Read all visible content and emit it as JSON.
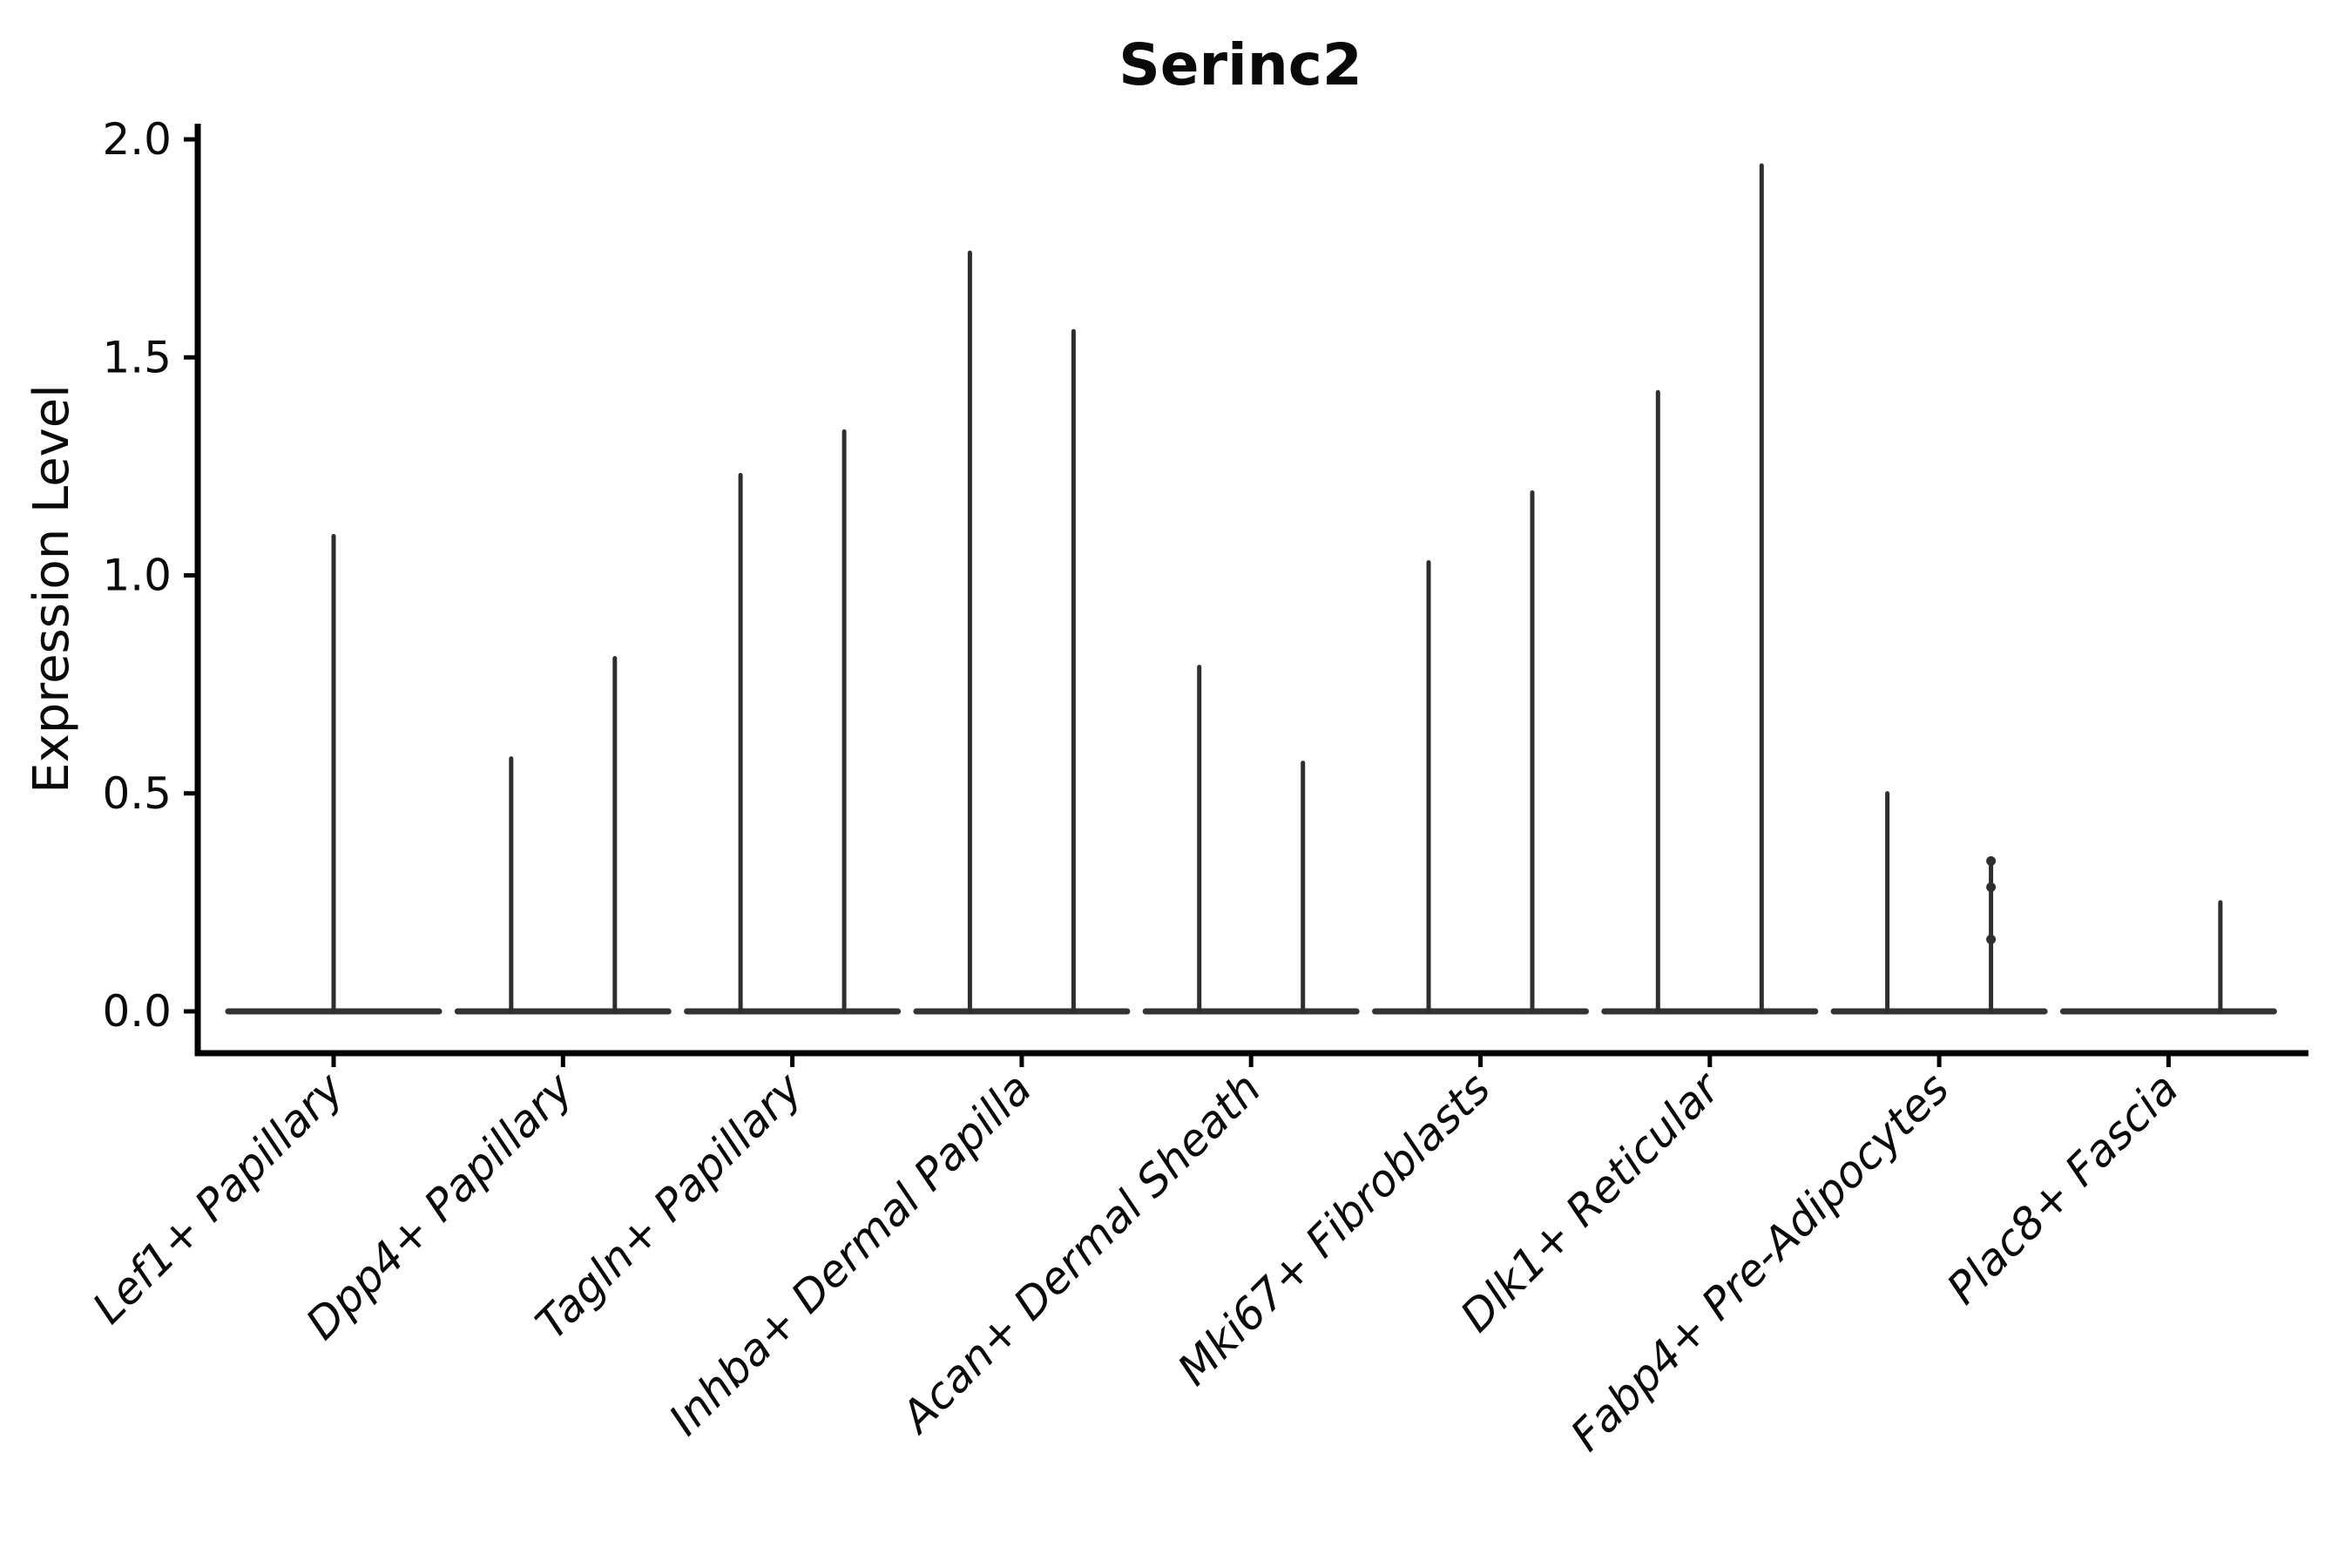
{
  "title": "Serinc2",
  "axes": {
    "ylabel": "Expression Level",
    "ytick_labels": [
      "0.0",
      "0.5",
      "1.0",
      "1.5",
      "2.0"
    ]
  },
  "colors": {
    "violin_stroke": "#2e2e2e",
    "base_stroke": "#333333",
    "axis_stroke": "#000000",
    "text": "#0a0a0a",
    "background": "#ffffff"
  },
  "chart_data": {
    "type": "violin",
    "title": "Serinc2",
    "xlabel": "",
    "ylabel": "Expression Level",
    "ylim": [
      0,
      2.0
    ],
    "yticks": [
      0,
      0.5,
      1.0,
      1.5,
      2.0
    ],
    "grid": false,
    "legend": "none",
    "description": "Violin plot of Serinc2 expression; most cells at 0 so each violin renders as a wide flat base at 0 with a thin vertical spike to its maximum. Categories 2-8 contain two dodged violins (left/right); Lef1 has one full-width violin; Plac8 left violin is all zeros (no spike).",
    "categories": [
      "Lef1+ Papillary",
      "Dpp4+ Papillary",
      "Tagln+ Papillary",
      "Inhba+ Dermal Papilla",
      "Acan+ Dermal Sheath",
      "Mki67+ Fibroblasts",
      "Dlk1+ Reticular",
      "Fabp4+ Pre-Adipocytes",
      "Plac8+ Fascia"
    ],
    "violins": [
      {
        "label": "Lef1+ Papillary",
        "spikes": [
          {
            "pos": "center",
            "max": 1.09
          }
        ],
        "points": []
      },
      {
        "label": "Dpp4+ Papillary",
        "spikes": [
          {
            "pos": "left",
            "max": 0.58
          },
          {
            "pos": "right",
            "max": 0.81
          }
        ],
        "points": []
      },
      {
        "label": "Tagln+ Papillary",
        "spikes": [
          {
            "pos": "left",
            "max": 1.23
          },
          {
            "pos": "right",
            "max": 1.33
          }
        ],
        "points": []
      },
      {
        "label": "Inhba+ Dermal Papilla",
        "spikes": [
          {
            "pos": "left",
            "max": 1.74
          },
          {
            "pos": "right",
            "max": 1.56
          }
        ],
        "points": []
      },
      {
        "label": "Acan+ Dermal Sheath",
        "spikes": [
          {
            "pos": "left",
            "max": 0.79
          },
          {
            "pos": "right",
            "max": 0.57
          }
        ],
        "points": []
      },
      {
        "label": "Mki67+ Fibroblasts",
        "spikes": [
          {
            "pos": "left",
            "max": 1.03
          },
          {
            "pos": "right",
            "max": 1.19
          }
        ],
        "points": []
      },
      {
        "label": "Dlk1+ Reticular",
        "spikes": [
          {
            "pos": "left",
            "max": 1.42
          },
          {
            "pos": "right",
            "max": 1.94
          }
        ],
        "points": []
      },
      {
        "label": "Fabp4+ Pre-Adipocytes",
        "spikes": [
          {
            "pos": "left",
            "max": 0.5
          },
          {
            "pos": "right",
            "max": 0.35
          }
        ],
        "points": [
          {
            "pos": "right",
            "values": [
              0.345,
              0.285,
              0.165
            ]
          }
        ]
      },
      {
        "label": "Plac8+ Fascia",
        "spikes": [
          {
            "pos": "right",
            "max": 0.25
          }
        ],
        "points": []
      }
    ]
  }
}
